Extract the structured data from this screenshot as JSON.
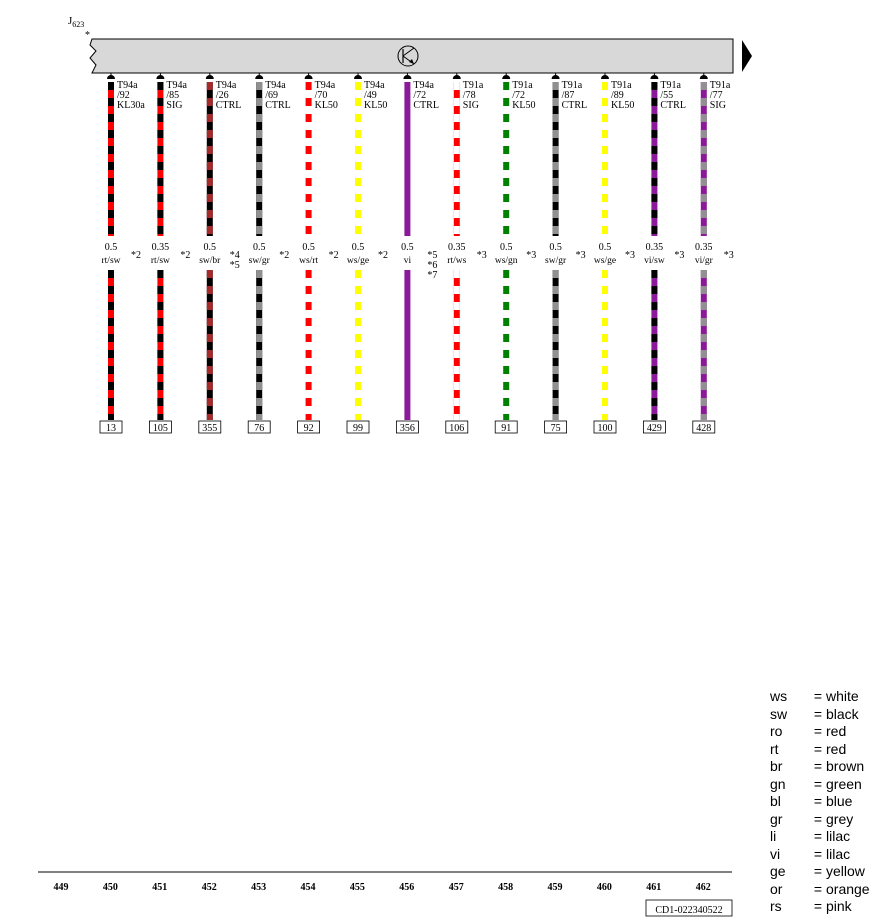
{
  "component": {
    "id": "J",
    "sub": "623",
    "star": "*"
  },
  "wires": [
    {
      "conn": "T94a",
      "pin": "/92",
      "func": "KL30a",
      "size": "0.5",
      "code": "rt/sw",
      "notes": [
        "*2"
      ],
      "num": "13",
      "c1": "#ff0000",
      "c2": "#000000"
    },
    {
      "conn": "T94a",
      "pin": "/85",
      "func": "SIG",
      "size": "0.35",
      "code": "rt/sw",
      "notes": [
        "*2"
      ],
      "num": "105",
      "c1": "#ff0000",
      "c2": "#000000"
    },
    {
      "conn": "T94a",
      "pin": "/26",
      "func": "CTRL",
      "size": "0.5",
      "code": "sw/br",
      "notes": [
        "*4",
        "*5"
      ],
      "num": "355",
      "c1": "#000000",
      "c2": "#a52a2a"
    },
    {
      "conn": "T94a",
      "pin": "/69",
      "func": "CTRL",
      "size": "0.5",
      "code": "sw/gr",
      "notes": [
        "*2"
      ],
      "num": "76",
      "c1": "#000000",
      "c2": "#909090"
    },
    {
      "conn": "T94a",
      "pin": "/70",
      "func": "KL50",
      "size": "0.5",
      "code": "ws/rt",
      "notes": [
        "*2"
      ],
      "num": "92",
      "c1": "#ffffff",
      "c2": "#ff0000"
    },
    {
      "conn": "T94a",
      "pin": "/49",
      "func": "KL50",
      "size": "0.5",
      "code": "ws/ge",
      "notes": [
        "*2"
      ],
      "num": "99",
      "c1": "#ffffff",
      "c2": "#ffff00"
    },
    {
      "conn": "T94a",
      "pin": "/72",
      "func": "CTRL",
      "size": "0.5",
      "code": "vi",
      "notes": [
        "*5",
        "*6",
        "*7"
      ],
      "num": "356",
      "c1": "#8b1a9b",
      "c2": "#8b1a9b"
    },
    {
      "conn": "T91a",
      "pin": "/78",
      "func": "SIG",
      "size": "0.35",
      "code": "rt/ws",
      "notes": [
        "*3"
      ],
      "num": "106",
      "c1": "#ff0000",
      "c2": "#ffffff"
    },
    {
      "conn": "T91a",
      "pin": "/72",
      "func": "KL50",
      "size": "0.5",
      "code": "ws/gn",
      "notes": [
        "*3"
      ],
      "num": "91",
      "c1": "#ffffff",
      "c2": "#008000"
    },
    {
      "conn": "T91a",
      "pin": "/87",
      "func": "CTRL",
      "size": "0.5",
      "code": "sw/gr",
      "notes": [
        "*3"
      ],
      "num": "75",
      "c1": "#000000",
      "c2": "#909090"
    },
    {
      "conn": "T91a",
      "pin": "/89",
      "func": "KL50",
      "size": "0.5",
      "code": "ws/ge",
      "notes": [
        "*3"
      ],
      "num": "100",
      "c1": "#ffffff",
      "c2": "#ffff00"
    },
    {
      "conn": "T91a",
      "pin": "/55",
      "func": "CTRL",
      "size": "0.35",
      "code": "vi/sw",
      "notes": [
        "*3"
      ],
      "num": "429",
      "c1": "#8b1a9b",
      "c2": "#000000"
    },
    {
      "conn": "T91a",
      "pin": "/77",
      "func": "SIG",
      "size": "0.35",
      "code": "vi/gr",
      "notes": [
        "*3"
      ],
      "num": "428",
      "c1": "#8b1a9b",
      "c2": "#909090"
    }
  ],
  "grid_numbers": [
    "449",
    "450",
    "451",
    "452",
    "453",
    "454",
    "455",
    "456",
    "457",
    "458",
    "459",
    "460",
    "461",
    "462"
  ],
  "doc_ref": "CD1-022340522",
  "legend": [
    {
      "abbr": "ws",
      "eq": "=",
      "name": "white"
    },
    {
      "abbr": "sw",
      "eq": "=",
      "name": "black"
    },
    {
      "abbr": "ro",
      "eq": "=",
      "name": "red"
    },
    {
      "abbr": "rt",
      "eq": "=",
      "name": "red"
    },
    {
      "abbr": "br",
      "eq": "=",
      "name": "brown"
    },
    {
      "abbr": "gn",
      "eq": "=",
      "name": "green"
    },
    {
      "abbr": "bl",
      "eq": "=",
      "name": "blue"
    },
    {
      "abbr": "gr",
      "eq": "=",
      "name": "grey"
    },
    {
      "abbr": "li",
      "eq": "=",
      "name": "lilac"
    },
    {
      "abbr": "vi",
      "eq": "=",
      "name": "lilac"
    },
    {
      "abbr": "ge",
      "eq": "=",
      "name": "yellow"
    },
    {
      "abbr": "or",
      "eq": "=",
      "name": "orange"
    },
    {
      "abbr": "rs",
      "eq": "=",
      "name": "pink"
    }
  ]
}
